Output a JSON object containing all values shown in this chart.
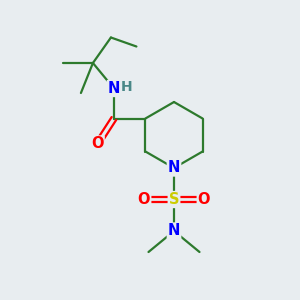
{
  "background_color": "#e8edf0",
  "bond_color": "#2d7a2d",
  "atom_colors": {
    "N": "#0000ff",
    "O": "#ff0000",
    "S": "#cccc00",
    "H": "#4a8888"
  },
  "figsize": [
    3.0,
    3.0
  ],
  "dpi": 100,
  "lw": 1.6,
  "fs": 10.5
}
